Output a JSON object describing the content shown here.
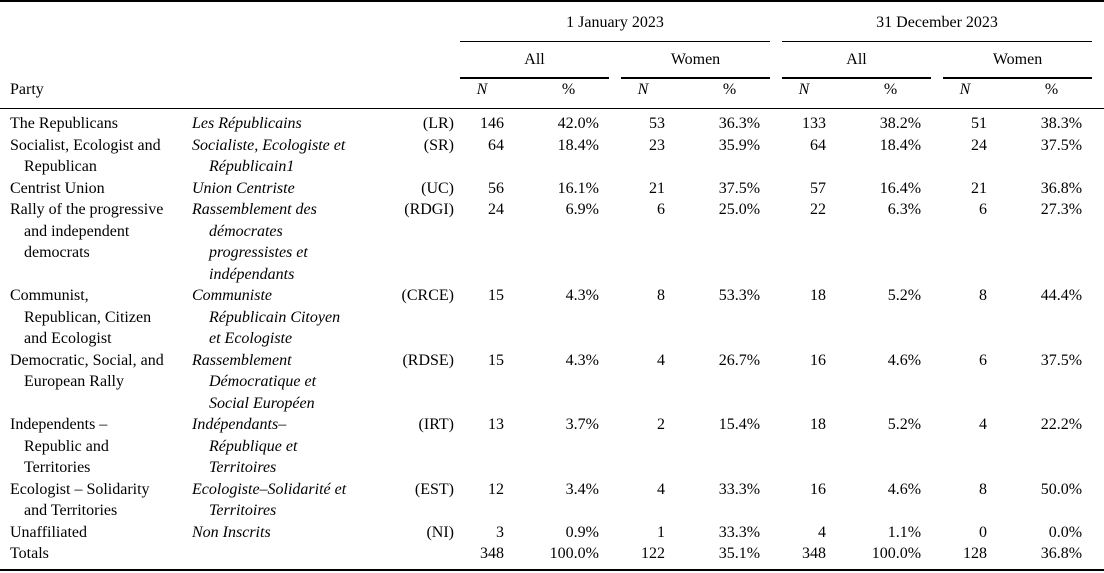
{
  "header": {
    "party": "Party",
    "periods": [
      {
        "label": "1 January 2023"
      },
      {
        "label": "31 December 2023"
      }
    ],
    "groups": [
      "All",
      "Women"
    ],
    "n": "N",
    "pct": "%"
  },
  "table": {
    "rows": [
      {
        "en": [
          "The Republicans"
        ],
        "fr": [
          "Les Républicains"
        ],
        "abbr": "(LR)",
        "values": [
          "146",
          "42.0%",
          "53",
          "36.3%",
          "133",
          "38.2%",
          "51",
          "38.3%"
        ]
      },
      {
        "en": [
          "Socialist, Ecologist and",
          "Republican"
        ],
        "fr": [
          "Socialiste, Ecologiste et",
          "Républicain1"
        ],
        "abbr": "(SR)",
        "values": [
          "64",
          "18.4%",
          "23",
          "35.9%",
          "64",
          "18.4%",
          "24",
          "37.5%"
        ]
      },
      {
        "en": [
          "Centrist Union"
        ],
        "fr": [
          "Union Centriste"
        ],
        "abbr": "(UC)",
        "values": [
          "56",
          "16.1%",
          "21",
          "37.5%",
          "57",
          "16.4%",
          "21",
          "36.8%"
        ]
      },
      {
        "en": [
          "Rally of the progressive",
          "and independent",
          "democrats"
        ],
        "fr": [
          "Rassemblement des",
          "démocrates",
          "progressistes et",
          "indépendants"
        ],
        "abbr": "(RDGI)",
        "values": [
          "24",
          "6.9%",
          "6",
          "25.0%",
          "22",
          "6.3%",
          "6",
          "27.3%"
        ]
      },
      {
        "en": [
          "Communist,",
          "Republican, Citizen",
          "and Ecologist"
        ],
        "fr": [
          "Communiste",
          "Républicain Citoyen",
          "et Ecologiste"
        ],
        "abbr": "(CRCE)",
        "values": [
          "15",
          "4.3%",
          "8",
          "53.3%",
          "18",
          "5.2%",
          "8",
          "44.4%"
        ]
      },
      {
        "en": [
          "Democratic, Social, and",
          "European Rally"
        ],
        "fr": [
          "Rassemblement",
          "Démocratique et",
          "Social Européen"
        ],
        "abbr": "(RDSE)",
        "values": [
          "15",
          "4.3%",
          "4",
          "26.7%",
          "16",
          "4.6%",
          "6",
          "37.5%"
        ]
      },
      {
        "en": [
          "Independents –",
          "Republic and",
          "Territories"
        ],
        "fr": [
          "Indépendants–",
          "République et",
          "Territoires"
        ],
        "abbr": "(IRT)",
        "values": [
          "13",
          "3.7%",
          "2",
          "15.4%",
          "18",
          "5.2%",
          "4",
          "22.2%"
        ]
      },
      {
        "en": [
          "Ecologist – Solidarity",
          "and Territories"
        ],
        "fr": [
          "Ecologiste–Solidarité et",
          "Territoires"
        ],
        "abbr": "(EST)",
        "values": [
          "12",
          "3.4%",
          "4",
          "33.3%",
          "16",
          "4.6%",
          "8",
          "50.0%"
        ]
      },
      {
        "en": [
          "Unaffiliated"
        ],
        "fr": [
          "Non Inscrits"
        ],
        "abbr": "(NI)",
        "values": [
          "3",
          "0.9%",
          "1",
          "33.3%",
          "4",
          "1.1%",
          "0",
          "0.0%"
        ]
      },
      {
        "en": [
          "Totals"
        ],
        "fr": [],
        "abbr": "",
        "values": [
          "348",
          "100.0%",
          "122",
          "35.1%",
          "348",
          "100.0%",
          "128",
          "36.8%"
        ]
      }
    ]
  }
}
